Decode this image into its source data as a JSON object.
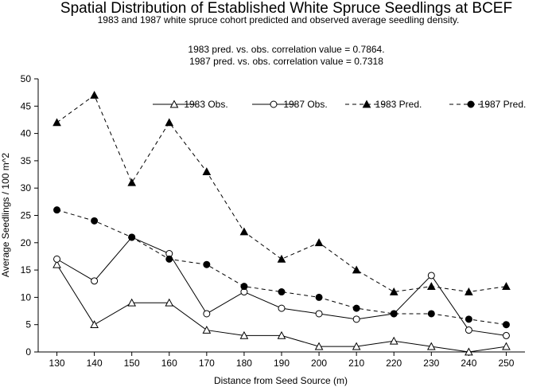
{
  "chart_data": {
    "type": "line",
    "title": "Spatial Distribution of Established White Spruce Seedlings at BCEF",
    "subtitle": "1983 and 1987 white spruce cohort predicted and observed average seedling density.",
    "annotations": [
      "1983 pred. vs. obs. correlation value = 0.7864.",
      "1987 pred. vs. obs. correlation value = 0.7318"
    ],
    "xlabel": "Distance from Seed Source (m)",
    "ylabel": "Average Seedlings / 100 m^2",
    "x": [
      130,
      140,
      150,
      160,
      170,
      180,
      190,
      200,
      210,
      220,
      230,
      240,
      250
    ],
    "xlim": [
      125,
      255
    ],
    "ylim": [
      0,
      50
    ],
    "yticks": [
      0,
      5,
      10,
      15,
      20,
      25,
      30,
      35,
      40,
      45,
      50
    ],
    "legend_position": "top-right",
    "series": [
      {
        "name": "1983 Obs.",
        "marker": "triangle-open",
        "line": "solid",
        "values": [
          16,
          5,
          9,
          9,
          4,
          3,
          3,
          1,
          1,
          2,
          1,
          0,
          1
        ]
      },
      {
        "name": "1987 Obs.",
        "marker": "circle-open",
        "line": "solid",
        "values": [
          17,
          13,
          21,
          18,
          7,
          11,
          8,
          7,
          6,
          7,
          14,
          4,
          3
        ]
      },
      {
        "name": "1983 Pred.",
        "marker": "triangle-filled",
        "line": "dashed",
        "values": [
          42,
          47,
          31,
          42,
          33,
          22,
          17,
          20,
          15,
          11,
          12,
          11,
          12
        ]
      },
      {
        "name": "1987 Pred.",
        "marker": "circle-filled",
        "line": "dashed",
        "values": [
          26,
          24,
          21,
          17,
          16,
          12,
          11,
          10,
          8,
          7,
          7,
          6,
          5
        ]
      }
    ]
  }
}
